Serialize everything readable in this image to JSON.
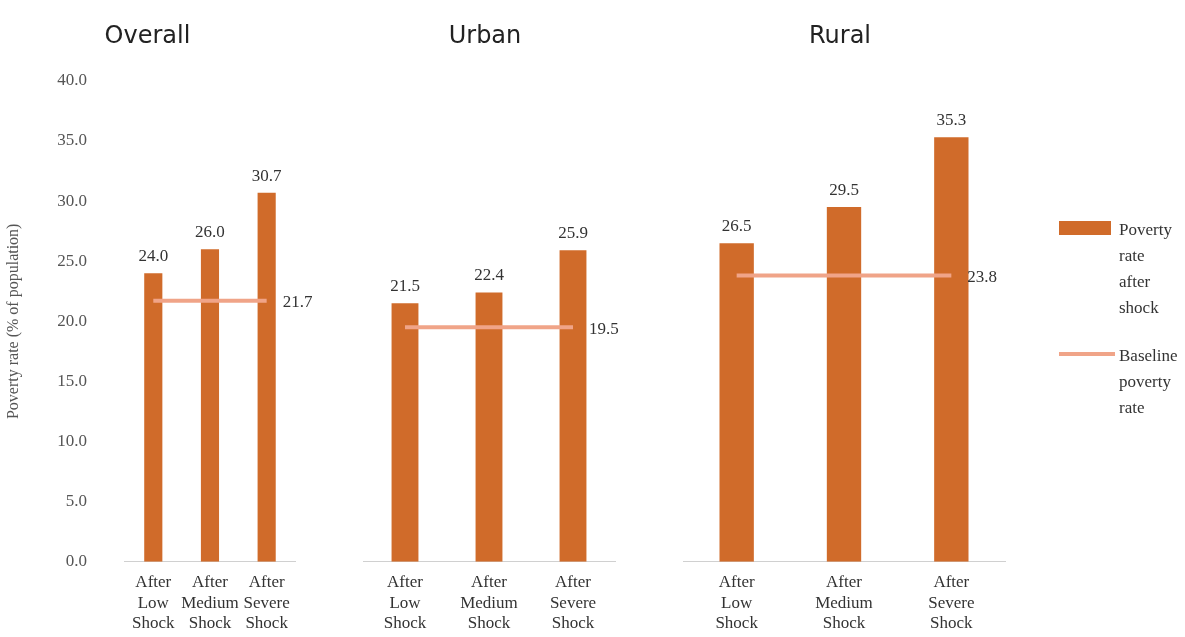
{
  "chart_data": [
    {
      "type": "bar",
      "title": "Overall",
      "ylabel": "Poverty rate (% of population)",
      "categories": [
        "After Low Shock",
        "After Medium Shock",
        "After Severe Shock"
      ],
      "series": [
        {
          "color": "#d06b2a",
          "values": [
            24.0,
            26.0,
            30.7
          ],
          "value_labels": [
            "24.0",
            "26.0",
            "30.7"
          ]
        },
        {
          "type": "line",
          "color": "#f0a488",
          "values": [
            21.7,
            21.7,
            21.7
          ],
          "value_labels": [
            null,
            null,
            "21.7"
          ]
        }
      ],
      "ylim": [
        0,
        40
      ],
      "yticks": [
        {
          "value": 0,
          "label": "0.0"
        },
        {
          "value": 5,
          "label": "5.0"
        },
        {
          "value": 10,
          "label": "10.0"
        },
        {
          "value": 15,
          "label": "15.0"
        },
        {
          "value": 20,
          "label": "20.0"
        },
        {
          "value": 25,
          "label": "25.0"
        },
        {
          "value": 30,
          "label": "30.0"
        },
        {
          "value": 35,
          "label": "35.0"
        },
        {
          "value": 40,
          "label": "40.0"
        }
      ],
      "grid": false,
      "legend": false,
      "marker": "none"
    },
    {
      "type": "bar",
      "title": "Urban",
      "categories": [
        "After Low Shock",
        "After Medium Shock",
        "After Severe Shock"
      ],
      "series": [
        {
          "color": "#d06b2a",
          "values": [
            21.5,
            22.4,
            25.9
          ],
          "value_labels": [
            "21.5",
            "22.4",
            "25.9"
          ]
        },
        {
          "type": "line",
          "color": "#f0a488",
          "values": [
            19.5,
            19.5,
            19.5
          ],
          "value_labels": [
            null,
            null,
            "19.5"
          ]
        }
      ],
      "ylim": [
        0,
        40
      ],
      "tick_labels": "x",
      "grid": false,
      "legend": false,
      "marker": "none"
    },
    {
      "type": "bar",
      "title": "Rural",
      "categories": [
        "After Low Shock",
        "After Medium Shock",
        "After Severe Shock"
      ],
      "series": [
        {
          "name": "Poverty rate after shock",
          "color": "#d06b2a",
          "values": [
            26.5,
            29.5,
            35.3
          ],
          "value_labels": [
            "26.5",
            "29.5",
            "35.3"
          ]
        },
        {
          "type": "line",
          "name": "Baseline poverty rate",
          "color": "#f0a488",
          "values": [
            23.8,
            23.8,
            23.8
          ],
          "value_labels": [
            null,
            null,
            "23.8"
          ]
        }
      ],
      "ylim": [
        0,
        40
      ],
      "tick_labels": "x",
      "grid": false,
      "legend": "right",
      "marker": "none"
    }
  ]
}
